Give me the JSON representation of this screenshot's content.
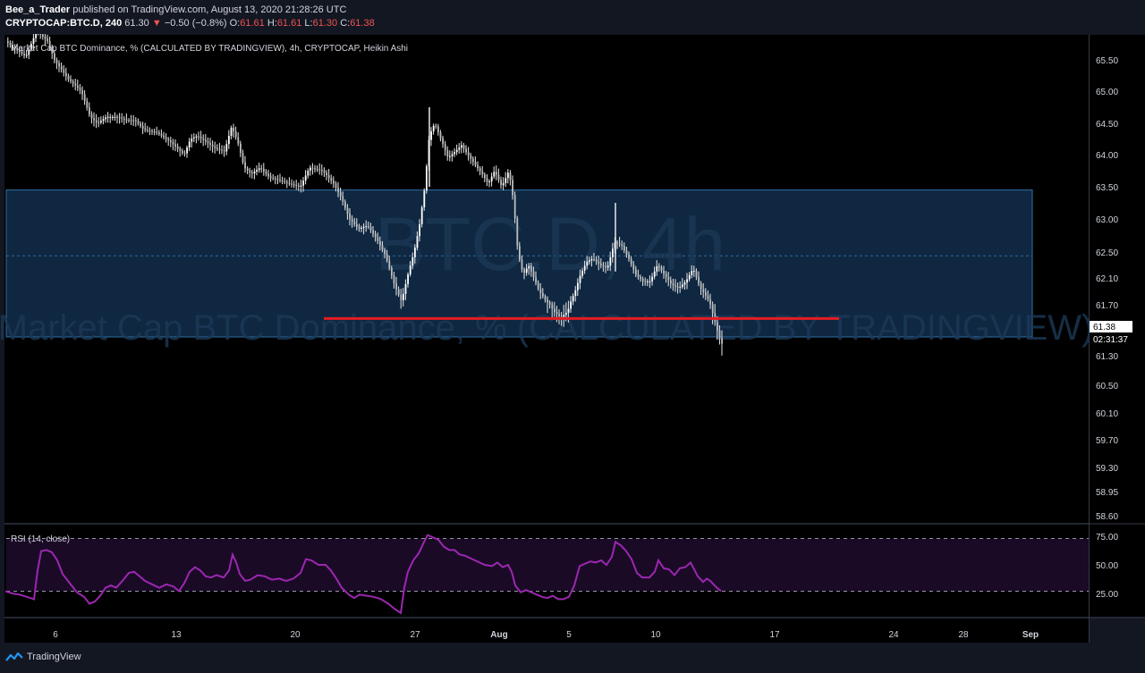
{
  "header": {
    "author": "Bee_a_Trader",
    "published_text": "published on TradingView.com, August 13, 2020 21:28:26 UTC",
    "symbol": "CRYPTOCAP:BTC.D, 240",
    "last": "61.30",
    "change": "−0.50 (−0.8%)",
    "ohlc": [
      {
        "k": "O:",
        "v": "61.61"
      },
      {
        "k": "H:",
        "v": "61.61"
      },
      {
        "k": "L:",
        "v": "61.30"
      },
      {
        "k": "C:",
        "v": "61.38"
      }
    ]
  },
  "legend_main": "Market Cap BTC Dominance, % (CALCULATED BY TRADINGVIEW), 4h, CRYPTOCAP, Heikin Ashi",
  "legend_rsi": "RSI (14, close)",
  "watermark": {
    "line1": "BTC.D, 4h",
    "line2": "Market Cap BTC Dominance, % (CALCULATED BY TRADINGVIEW)"
  },
  "footer_brand": "TradingView",
  "colors": {
    "background": "#000000",
    "candle": "#e8e8e8",
    "support_line": "#e51c23",
    "range_box": "#0f2740",
    "range_box_border": "#2f6fa6",
    "rsi_line": "#9c27b0",
    "rsi_band": "#1a0a26",
    "price_tag": "#ffffff"
  },
  "chart_data": [
    {
      "type": "candlestick",
      "style": "Heikin Ashi",
      "x_tick_labels": [
        "6",
        "13",
        "20",
        "27",
        "Aug",
        "5",
        "10",
        "17",
        "24",
        "28",
        "Sep"
      ],
      "y_ticks": [
        65.5,
        65.0,
        64.5,
        64.0,
        63.5,
        63.0,
        62.5,
        62.1,
        61.7,
        61.3,
        60.5,
        60.1,
        59.7,
        59.3,
        58.95,
        58.6
      ],
      "y_tick_labels": [
        "65.50",
        "65.00",
        "64.50",
        "64.00",
        "63.50",
        "63.00",
        "62.50",
        "62.10",
        "61.70",
        "61.30",
        "60.50",
        "60.10",
        "59.70",
        "59.30",
        "58.95",
        "58.60"
      ],
      "last_price_label": "61.38",
      "countdown_label": "02:31:37",
      "range_box": {
        "top": 63.45,
        "bottom": 61.3,
        "mid": 62.4
      },
      "support_level": 61.55,
      "close_path": [
        [
          0,
          65.85
        ],
        [
          14,
          65.7
        ],
        [
          28,
          65.55
        ],
        [
          40,
          65.95
        ],
        [
          52,
          65.8
        ],
        [
          60,
          65.5
        ],
        [
          75,
          65.2
        ],
        [
          90,
          65.0
        ],
        [
          100,
          64.6
        ],
        [
          108,
          64.5
        ],
        [
          118,
          64.6
        ],
        [
          130,
          64.6
        ],
        [
          140,
          64.55
        ],
        [
          150,
          64.55
        ],
        [
          160,
          64.4
        ],
        [
          175,
          64.35
        ],
        [
          190,
          64.2
        ],
        [
          205,
          64.0
        ],
        [
          212,
          64.25
        ],
        [
          220,
          64.3
        ],
        [
          230,
          64.2
        ],
        [
          240,
          64.1
        ],
        [
          250,
          64.05
        ],
        [
          258,
          64.45
        ],
        [
          265,
          64.2
        ],
        [
          272,
          63.8
        ],
        [
          280,
          63.7
        ],
        [
          290,
          63.8
        ],
        [
          300,
          63.65
        ],
        [
          312,
          63.6
        ],
        [
          322,
          63.55
        ],
        [
          335,
          63.5
        ],
        [
          345,
          63.8
        ],
        [
          360,
          63.75
        ],
        [
          372,
          63.55
        ],
        [
          380,
          63.35
        ],
        [
          390,
          63.0
        ],
        [
          400,
          62.85
        ],
        [
          410,
          62.9
        ],
        [
          420,
          62.7
        ],
        [
          430,
          62.45
        ],
        [
          440,
          62.0
        ],
        [
          448,
          61.75
        ],
        [
          456,
          62.2
        ],
        [
          462,
          62.5
        ],
        [
          468,
          62.9
        ],
        [
          474,
          63.5
        ],
        [
          479,
          64.3
        ],
        [
          485,
          64.5
        ],
        [
          492,
          64.25
        ],
        [
          500,
          63.95
        ],
        [
          508,
          64.05
        ],
        [
          515,
          64.15
        ],
        [
          522,
          64.0
        ],
        [
          530,
          63.85
        ],
        [
          538,
          63.7
        ],
        [
          545,
          63.55
        ],
        [
          552,
          63.75
        ],
        [
          560,
          63.5
        ],
        [
          568,
          63.75
        ],
        [
          573,
          63.3
        ],
        [
          578,
          62.5
        ],
        [
          584,
          62.15
        ],
        [
          590,
          62.3
        ],
        [
          596,
          62.1
        ],
        [
          602,
          61.9
        ],
        [
          610,
          61.75
        ],
        [
          618,
          61.65
        ],
        [
          626,
          61.6
        ],
        [
          634,
          61.65
        ],
        [
          642,
          61.9
        ],
        [
          648,
          62.15
        ],
        [
          655,
          62.35
        ],
        [
          662,
          62.4
        ],
        [
          670,
          62.3
        ],
        [
          678,
          62.25
        ],
        [
          686,
          62.65
        ],
        [
          694,
          62.6
        ],
        [
          702,
          62.4
        ],
        [
          710,
          62.15
        ],
        [
          718,
          62.05
        ],
        [
          726,
          62.05
        ],
        [
          734,
          62.3
        ],
        [
          742,
          62.15
        ],
        [
          750,
          62.0
        ],
        [
          758,
          61.95
        ],
        [
          766,
          62.05
        ],
        [
          774,
          62.25
        ],
        [
          782,
          61.95
        ],
        [
          790,
          61.8
        ],
        [
          797,
          61.6
        ],
        [
          803,
          61.45
        ],
        [
          807,
          61.38
        ]
      ],
      "highlight_wicks": [
        {
          "x": 480,
          "high": 64.75,
          "low": 63.5
        },
        {
          "x": 688,
          "high": 63.25,
          "low": 62.2
        }
      ]
    },
    {
      "type": "line",
      "name": "RSI (14, close)",
      "y_tick_labels": [
        "75.00",
        "50.00",
        "25.00"
      ],
      "y_ticks": [
        75,
        50,
        25
      ],
      "band": [
        73,
        27
      ],
      "points": [
        [
          6,
          27
        ],
        [
          14,
          25
        ],
        [
          22,
          24
        ],
        [
          30,
          22
        ],
        [
          38,
          20
        ],
        [
          42,
          45
        ],
        [
          46,
          62
        ],
        [
          52,
          63
        ],
        [
          58,
          61
        ],
        [
          64,
          54
        ],
        [
          70,
          42
        ],
        [
          78,
          34
        ],
        [
          86,
          26
        ],
        [
          94,
          22
        ],
        [
          100,
          16
        ],
        [
          106,
          18
        ],
        [
          112,
          23
        ],
        [
          118,
          30
        ],
        [
          124,
          32
        ],
        [
          130,
          30
        ],
        [
          138,
          37
        ],
        [
          144,
          43
        ],
        [
          150,
          44
        ],
        [
          156,
          40
        ],
        [
          162,
          36
        ],
        [
          170,
          33
        ],
        [
          178,
          30
        ],
        [
          186,
          33
        ],
        [
          194,
          31
        ],
        [
          200,
          27
        ],
        [
          206,
          34
        ],
        [
          212,
          44
        ],
        [
          218,
          48
        ],
        [
          224,
          45
        ],
        [
          230,
          40
        ],
        [
          236,
          39
        ],
        [
          242,
          41
        ],
        [
          250,
          39
        ],
        [
          256,
          45
        ],
        [
          260,
          59
        ],
        [
          264,
          52
        ],
        [
          268,
          42
        ],
        [
          274,
          36
        ],
        [
          280,
          37
        ],
        [
          288,
          41
        ],
        [
          296,
          40
        ],
        [
          304,
          37
        ],
        [
          312,
          38
        ],
        [
          320,
          36
        ],
        [
          328,
          38
        ],
        [
          336,
          43
        ],
        [
          342,
          55
        ],
        [
          348,
          54
        ],
        [
          356,
          50
        ],
        [
          364,
          50
        ],
        [
          370,
          45
        ],
        [
          376,
          38
        ],
        [
          382,
          30
        ],
        [
          390,
          24
        ],
        [
          396,
          21
        ],
        [
          402,
          24
        ],
        [
          410,
          23
        ],
        [
          418,
          22
        ],
        [
          426,
          20
        ],
        [
          434,
          16
        ],
        [
          442,
          11
        ],
        [
          448,
          8
        ],
        [
          452,
          30
        ],
        [
          456,
          44
        ],
        [
          462,
          54
        ],
        [
          468,
          60
        ],
        [
          474,
          70
        ],
        [
          478,
          76
        ],
        [
          484,
          74
        ],
        [
          490,
          72
        ],
        [
          496,
          66
        ],
        [
          502,
          63
        ],
        [
          508,
          63
        ],
        [
          514,
          59
        ],
        [
          520,
          58
        ],
        [
          528,
          55
        ],
        [
          536,
          52
        ],
        [
          542,
          50
        ],
        [
          550,
          49
        ],
        [
          556,
          52
        ],
        [
          562,
          48
        ],
        [
          568,
          50
        ],
        [
          572,
          44
        ],
        [
          576,
          32
        ],
        [
          582,
          26
        ],
        [
          588,
          28
        ],
        [
          594,
          26
        ],
        [
          600,
          24
        ],
        [
          606,
          22
        ],
        [
          612,
          21
        ],
        [
          618,
          23
        ],
        [
          624,
          20
        ],
        [
          630,
          20
        ],
        [
          636,
          22
        ],
        [
          642,
          32
        ],
        [
          648,
          49
        ],
        [
          654,
          51
        ],
        [
          660,
          53
        ],
        [
          666,
          52
        ],
        [
          672,
          54
        ],
        [
          678,
          50
        ],
        [
          684,
          57
        ],
        [
          688,
          70
        ],
        [
          694,
          67
        ],
        [
          700,
          62
        ],
        [
          706,
          55
        ],
        [
          712,
          43
        ],
        [
          718,
          39
        ],
        [
          726,
          39
        ],
        [
          732,
          44
        ],
        [
          736,
          54
        ],
        [
          742,
          47
        ],
        [
          748,
          46
        ],
        [
          754,
          41
        ],
        [
          760,
          47
        ],
        [
          766,
          48
        ],
        [
          772,
          52
        ],
        [
          776,
          46
        ],
        [
          780,
          40
        ],
        [
          786,
          35
        ],
        [
          790,
          38
        ],
        [
          794,
          36
        ],
        [
          800,
          31
        ],
        [
          806,
          27
        ]
      ]
    }
  ]
}
